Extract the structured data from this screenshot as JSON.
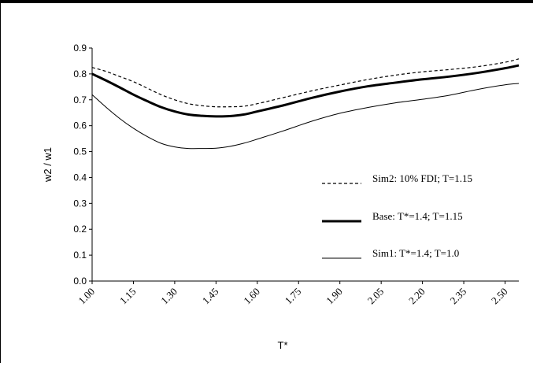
{
  "chart_data": {
    "type": "line",
    "xlabel": "T*",
    "ylabel": "w2 / w1",
    "ylim": [
      0.0,
      0.9
    ],
    "y_ticks": [
      "0.0",
      "0.1",
      "0.2",
      "0.3",
      "0.4",
      "0.5",
      "0.6",
      "0.7",
      "0.8",
      "0.9"
    ],
    "x_ticks": [
      "1.00",
      "1.15",
      "1.30",
      "1.45",
      "1.60",
      "1.75",
      "1.90",
      "2.05",
      "2.20",
      "2.35",
      "2.50"
    ],
    "xlim": [
      1.0,
      2.55
    ],
    "grid": false,
    "legend_position": "right",
    "series": [
      {
        "name": "Sim2: 10% FDI; T=1.15",
        "style": "dashed",
        "x": [
          1.0,
          1.05,
          1.1,
          1.15,
          1.2,
          1.25,
          1.3,
          1.35,
          1.4,
          1.45,
          1.5,
          1.55,
          1.6,
          1.7,
          1.8,
          1.9,
          2.0,
          2.1,
          2.2,
          2.3,
          2.4,
          2.5,
          2.55
        ],
        "values": [
          0.825,
          0.81,
          0.79,
          0.77,
          0.745,
          0.72,
          0.7,
          0.685,
          0.677,
          0.673,
          0.673,
          0.675,
          0.685,
          0.71,
          0.735,
          0.757,
          0.778,
          0.795,
          0.808,
          0.817,
          0.828,
          0.845,
          0.858
        ]
      },
      {
        "name": "Base: T*=1.4; T=1.15",
        "style": "thick",
        "x": [
          1.0,
          1.05,
          1.1,
          1.15,
          1.2,
          1.25,
          1.3,
          1.35,
          1.4,
          1.45,
          1.5,
          1.55,
          1.6,
          1.7,
          1.8,
          1.9,
          2.0,
          2.1,
          2.2,
          2.3,
          2.4,
          2.5,
          2.55
        ],
        "values": [
          0.8,
          0.775,
          0.748,
          0.72,
          0.695,
          0.672,
          0.655,
          0.643,
          0.638,
          0.636,
          0.637,
          0.643,
          0.655,
          0.68,
          0.708,
          0.732,
          0.752,
          0.766,
          0.779,
          0.79,
          0.804,
          0.822,
          0.833
        ]
      },
      {
        "name": "Sim1: T*=1.4; T=1.0",
        "style": "thin",
        "x": [
          1.0,
          1.05,
          1.1,
          1.15,
          1.2,
          1.25,
          1.3,
          1.35,
          1.4,
          1.45,
          1.5,
          1.55,
          1.6,
          1.7,
          1.8,
          1.9,
          2.0,
          2.1,
          2.2,
          2.3,
          2.4,
          2.5,
          2.55
        ],
        "values": [
          0.72,
          0.672,
          0.628,
          0.59,
          0.558,
          0.532,
          0.518,
          0.512,
          0.512,
          0.513,
          0.52,
          0.532,
          0.548,
          0.582,
          0.618,
          0.648,
          0.67,
          0.688,
          0.702,
          0.718,
          0.74,
          0.758,
          0.763
        ]
      }
    ]
  }
}
